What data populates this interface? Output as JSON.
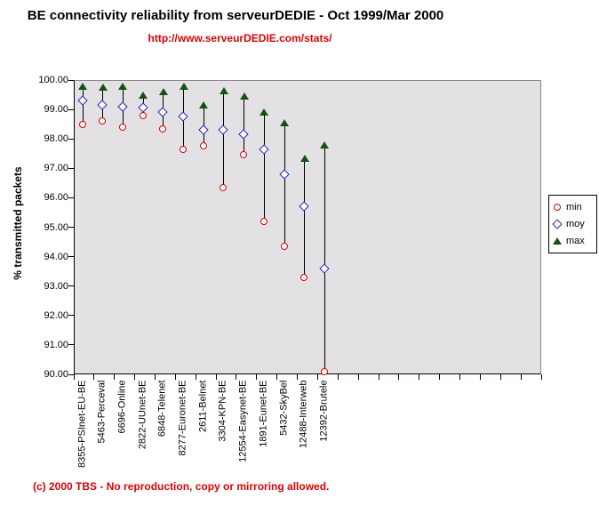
{
  "title": "BE connectivity reliability from serveurDEDIE - Oct 1999/Mar 2000",
  "subtitle": "http://www.serveurDEDIE.com/stats/",
  "footer": "(c) 2000 TBS - No reproduction, copy or mirroring allowed.",
  "colors": {
    "subtitle_text": "#e00000",
    "footer_text": "#e00000",
    "min_marker": "#dd0000",
    "moy_marker": "#2222bb",
    "max_marker": "#145214",
    "plot_background": "#e4e1e4",
    "hilo_line": "#000000"
  },
  "chart_data": {
    "type": "scatter",
    "title": "BE connectivity reliability from serveurDEDIE - Oct 1999/Mar 2000",
    "subtitle": "http://www.serveurDEDIE.com/stats/",
    "xlabel": "",
    "ylabel": "% transmitted packets",
    "ylim": [
      90,
      100
    ],
    "ytick_labels": [
      "100.00",
      "99.00",
      "98.00",
      "97.00",
      "96.00",
      "95.00",
      "94.00",
      "93.00",
      "92.00",
      "91.00",
      "90.00"
    ],
    "grid": false,
    "legend_position": "right",
    "categories": [
      "8355-PSInet-EU-BE",
      "5463-Perceval",
      "6696-Online",
      "2822-UUnet-BE",
      "6848-Telenet",
      "8277-Euronet-BE",
      "2611-Belnet",
      "3304-KPN-BE",
      "12554-Easynet-BE",
      "1891-Eunet-BE",
      "5432-SkyBel",
      "12488-Interweb",
      "12392-Brutele"
    ],
    "series": [
      {
        "name": "min",
        "marker": "circle",
        "values": [
          98.5,
          98.6,
          98.4,
          98.8,
          98.35,
          97.65,
          97.75,
          96.35,
          97.45,
          95.2,
          94.35,
          93.3,
          90.1
        ]
      },
      {
        "name": "moy",
        "marker": "diamond",
        "values": [
          99.3,
          99.15,
          99.1,
          99.05,
          98.9,
          98.75,
          98.3,
          98.3,
          98.15,
          97.65,
          96.8,
          95.7,
          93.6
        ]
      },
      {
        "name": "max",
        "marker": "triangle",
        "values": [
          99.8,
          99.75,
          99.8,
          99.5,
          99.6,
          99.8,
          99.15,
          99.65,
          99.45,
          98.9,
          98.55,
          97.35,
          97.8
        ]
      }
    ],
    "annotation": "vertical high-low lines connect min and max for each provider"
  },
  "legend": {
    "entries": [
      {
        "label": "min",
        "marker": "circle-icon"
      },
      {
        "label": "moy",
        "marker": "diamond-icon"
      },
      {
        "label": "max",
        "marker": "triangle-icon"
      }
    ]
  }
}
